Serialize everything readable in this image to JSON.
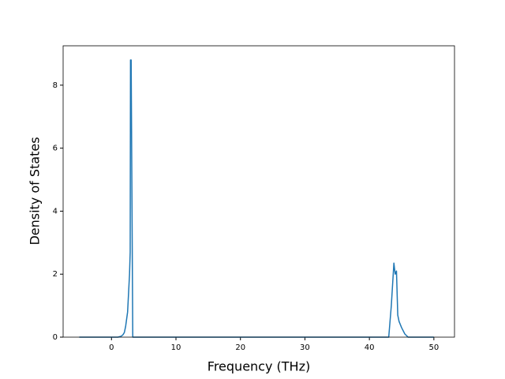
{
  "chart_data": {
    "type": "line",
    "xlabel": "Frequency (THz)",
    "ylabel": "Density of States",
    "x": [
      -5,
      0,
      1,
      1.5,
      1.8,
      2.0,
      2.2,
      2.5,
      2.8,
      2.9,
      2.95,
      3.05,
      3.3,
      10,
      20,
      30,
      40,
      43.0,
      43.4,
      43.8,
      44.0,
      44.2,
      44.4,
      44.6,
      45.0,
      45.5,
      46.0,
      50
    ],
    "series": [
      {
        "color": "#1f77b4",
        "values": [
          0,
          0,
          0,
          0.03,
          0.08,
          0.15,
          0.35,
          0.8,
          2.0,
          2.7,
          8.8,
          8.8,
          0,
          0,
          0,
          0,
          0,
          0,
          1.0,
          2.35,
          2.0,
          2.1,
          0.7,
          0.5,
          0.3,
          0.1,
          0,
          0
        ]
      }
    ],
    "xlim": [
      -7.5,
      53.2
    ],
    "ylim": [
      0,
      9.25
    ],
    "xticks": [
      0,
      10,
      20,
      30,
      40,
      50
    ],
    "yticks": [
      0,
      2,
      4,
      6,
      8
    ],
    "grid": false
  }
}
